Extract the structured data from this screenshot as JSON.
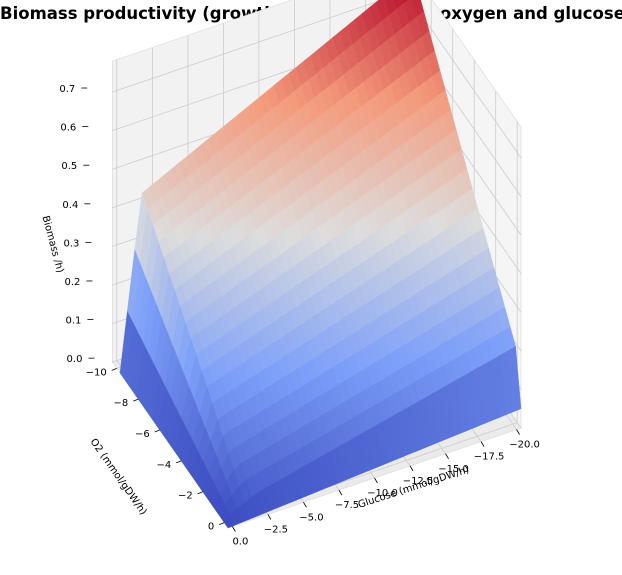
{
  "chart_data": {
    "type": "surface3d",
    "title": "Biomass productivity (growth) as a function of oxygen and glucose",
    "xlabel": "Glucose (mmol/gDW/h)",
    "ylabel": "O2 (mmol/gDW/h)",
    "zlabel": "Biomass /h)",
    "x_ticks": [
      "0.0",
      "−2.5",
      "−5.0",
      "−7.5",
      "−10.0",
      "−12.5",
      "−15.0",
      "−17.5",
      "−20.0"
    ],
    "y_ticks": [
      "0",
      "−2",
      "−4",
      "−6",
      "−8",
      "−10"
    ],
    "z_ticks": [
      "0.0",
      "0.1",
      "0.2",
      "0.3",
      "0.4",
      "0.5",
      "0.6",
      "0.7"
    ],
    "xlim": [
      0,
      -20
    ],
    "ylim": [
      0,
      -10
    ],
    "zlim": [
      0,
      0.78
    ],
    "colormap": "coolwarm",
    "corner_values": [
      {
        "glucose": 0,
        "o2": 0,
        "biomass": 0.0
      },
      {
        "glucose": -20,
        "o2": 0,
        "biomass": 0.16
      },
      {
        "glucose": 0,
        "o2": -10,
        "biomass": 0.0
      },
      {
        "glucose": -20,
        "o2": -10,
        "biomass": 0.78
      }
    ],
    "ridge": [
      {
        "glucose": -2.5,
        "o2": -10,
        "biomass": 0.42
      }
    ]
  }
}
